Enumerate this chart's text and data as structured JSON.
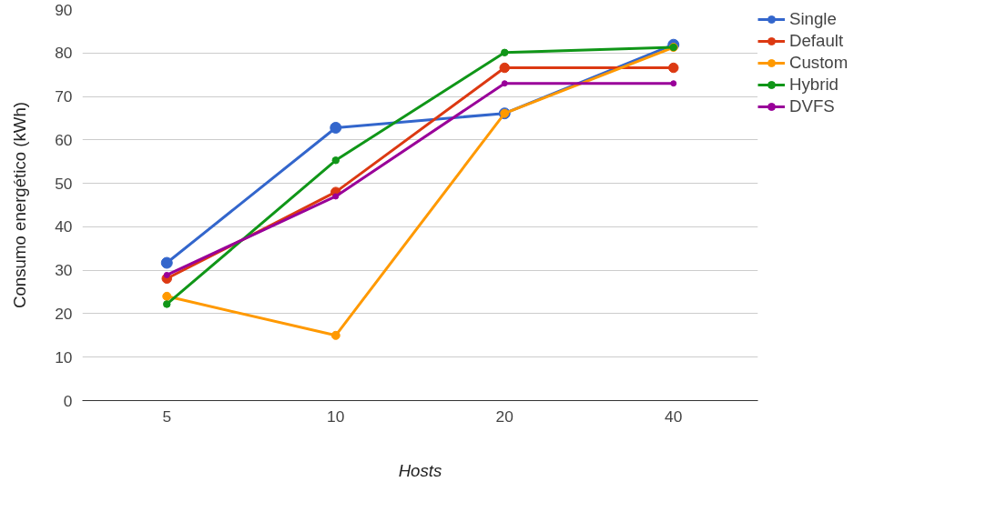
{
  "chart_data": {
    "type": "line",
    "xlabel": "Hosts",
    "ylabel": "Consumo energético (kWh)",
    "categories": [
      "5",
      "10",
      "20",
      "40"
    ],
    "ylim": [
      0,
      90
    ],
    "yticks": [
      0,
      10,
      20,
      30,
      40,
      50,
      60,
      70,
      80,
      90
    ],
    "grid": "y",
    "legend": "top right",
    "marker": "circle",
    "line_style": "solid",
    "series": [
      {
        "name": "Single",
        "color": "#3366cc",
        "values": [
          31.7,
          62.8,
          66.1,
          81.9
        ]
      },
      {
        "name": "Default",
        "color": "#dc3912",
        "values": [
          28.1,
          48.0,
          76.6,
          76.6
        ]
      },
      {
        "name": "Custom",
        "color": "#ff9900",
        "values": [
          24.0,
          15.0,
          66.1,
          81.3
        ]
      },
      {
        "name": "Hybrid",
        "color": "#109618",
        "values": [
          22.2,
          55.3,
          80.1,
          81.3
        ]
      },
      {
        "name": "DVFS",
        "color": "#990099",
        "values": [
          28.9,
          47.0,
          73.0,
          73.0
        ]
      }
    ]
  }
}
